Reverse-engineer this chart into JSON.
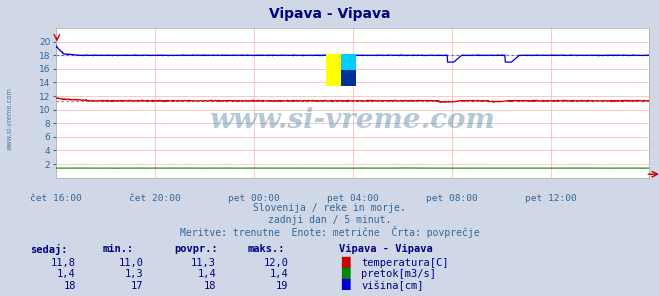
{
  "title": "Vipava - Vipava",
  "title_color": "#000080",
  "bg_color": "#d0d8e8",
  "plot_bg_color": "#ffffff",
  "grid_color": "#ffb0b0",
  "grid_color_v": "#ffb0b0",
  "watermark_text": "www.si-vreme.com",
  "watermark_color": "#5588aa",
  "watermark_alpha": 0.45,
  "subtitle_lines": [
    "Slovenija / reke in morje.",
    "zadnji dan / 5 minut.",
    "Meritve: trenutne  Enote: metrične  Črta: povprečje"
  ],
  "subtitle_color": "#336699",
  "tick_color": "#336699",
  "xtick_labels": [
    "čet 16:00",
    "čet 20:00",
    "pet 00:00",
    "pet 04:00",
    "pet 08:00",
    "pet 12:00"
  ],
  "xtick_positions": [
    0,
    240,
    480,
    720,
    960,
    1200
  ],
  "n_points": 1440,
  "ylim": [
    0,
    22
  ],
  "yticks": [
    2,
    4,
    6,
    8,
    10,
    12,
    14,
    16,
    18,
    20
  ],
  "temp_avg": 11.3,
  "temp_color": "#cc0000",
  "temp_avg_color": "#ff6666",
  "flow_value": 1.4,
  "flow_color": "#008800",
  "height_avg": 18.0,
  "height_color": "#0000cc",
  "height_avg_color": "#6666ff",
  "table_header_color": "#000080",
  "table_value_color": "#000080",
  "legend_title": "Vipava - Vipava",
  "legend_items": [
    {
      "label": "temperatura[C]",
      "color": "#cc0000"
    },
    {
      "label": "pretok[m3/s]",
      "color": "#008800"
    },
    {
      "label": "višina[cm]",
      "color": "#0000cc"
    }
  ],
  "table_rows": [
    {
      "sedaj": "11,8",
      "min": "11,0",
      "povpr": "11,3",
      "maks": "12,0"
    },
    {
      "sedaj": "1,4",
      "min": "1,3",
      "povpr": "1,4",
      "maks": "1,4"
    },
    {
      "sedaj": "18",
      "min": "17",
      "povpr": "18",
      "maks": "19"
    }
  ],
  "table_col_headers": [
    "sedaj:",
    "min.:",
    "povpr.:",
    "maks.:"
  ],
  "logo_colors": [
    "#ffff00",
    "#00ccff",
    "#003399"
  ],
  "sidebar_text": "www.si-vreme.com",
  "sidebar_color": "#336699"
}
